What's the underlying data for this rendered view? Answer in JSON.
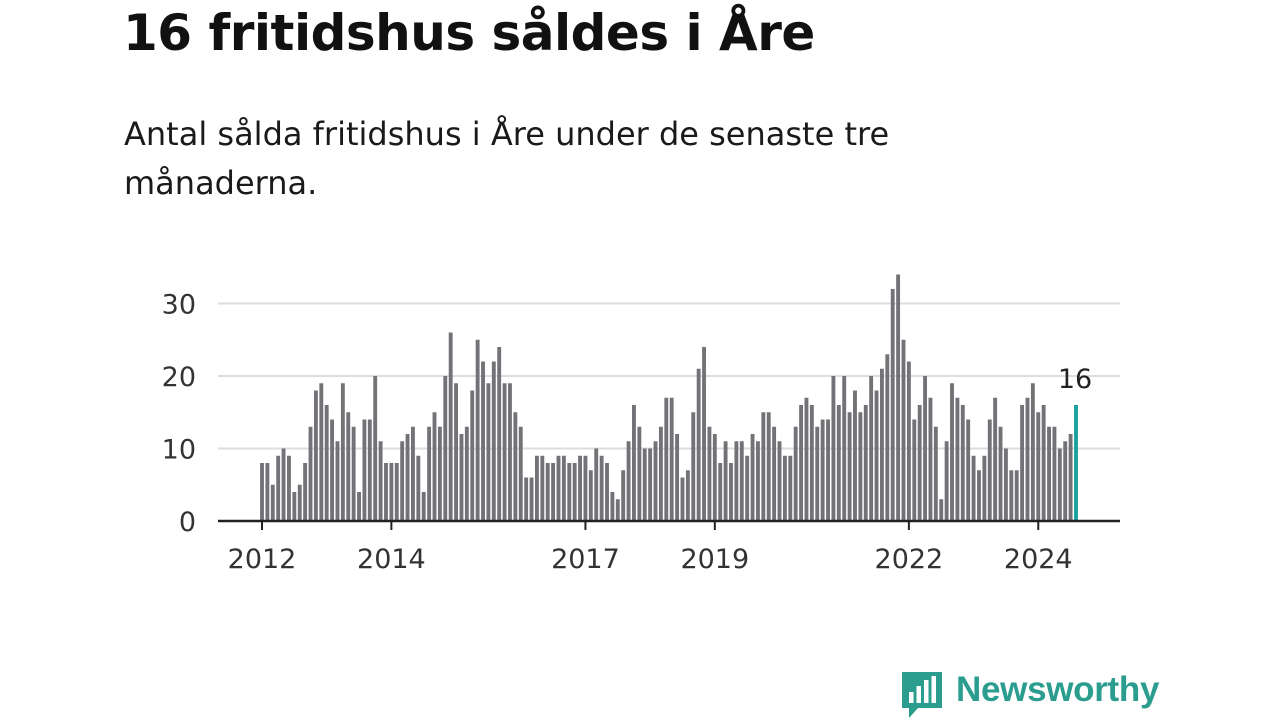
{
  "title": "16 fritidshus såldes i Åre",
  "subtitle": "Antal sålda fritidshus i Åre under de senaste tre månaderna.",
  "brand": {
    "name": "Newsworthy",
    "color": "#2a9d8f",
    "icon": "newsworthy-logo-icon"
  },
  "colors": {
    "bar": "#737277",
    "highlight": "#17a2a0",
    "grid": "#dddddd",
    "axis": "#222222"
  },
  "chart_data": {
    "type": "bar",
    "title": "16 fritidshus såldes i Åre",
    "xlabel": "",
    "ylabel": "",
    "ylim": [
      0,
      35
    ],
    "yticks": [
      0,
      10,
      20,
      30
    ],
    "grid": true,
    "x_tick_labels": [
      "2012",
      "2014",
      "2017",
      "2019",
      "2022",
      "2024"
    ],
    "highlight_label": "16",
    "values": [
      8,
      8,
      5,
      9,
      10,
      9,
      4,
      5,
      8,
      13,
      18,
      19,
      16,
      14,
      11,
      19,
      15,
      13,
      4,
      14,
      14,
      20,
      11,
      8,
      8,
      8,
      11,
      12,
      13,
      9,
      4,
      13,
      15,
      13,
      20,
      26,
      19,
      12,
      13,
      18,
      25,
      22,
      19,
      22,
      24,
      19,
      19,
      15,
      13,
      6,
      6,
      9,
      9,
      8,
      8,
      9,
      9,
      8,
      8,
      9,
      9,
      7,
      10,
      9,
      8,
      4,
      3,
      7,
      11,
      16,
      13,
      10,
      10,
      11,
      13,
      17,
      17,
      12,
      6,
      7,
      15,
      21,
      24,
      13,
      12,
      8,
      11,
      8,
      11,
      11,
      9,
      12,
      11,
      15,
      15,
      13,
      11,
      9,
      9,
      13,
      16,
      17,
      16,
      13,
      14,
      14,
      20,
      16,
      20,
      15,
      18,
      15,
      16,
      20,
      18,
      21,
      23,
      32,
      34,
      25,
      22,
      14,
      16,
      20,
      17,
      13,
      3,
      11,
      19,
      17,
      16,
      14,
      9,
      7,
      9,
      14,
      17,
      13,
      10,
      7,
      7,
      16,
      17,
      19,
      15,
      16,
      13,
      13,
      10,
      11,
      12,
      16
    ]
  }
}
